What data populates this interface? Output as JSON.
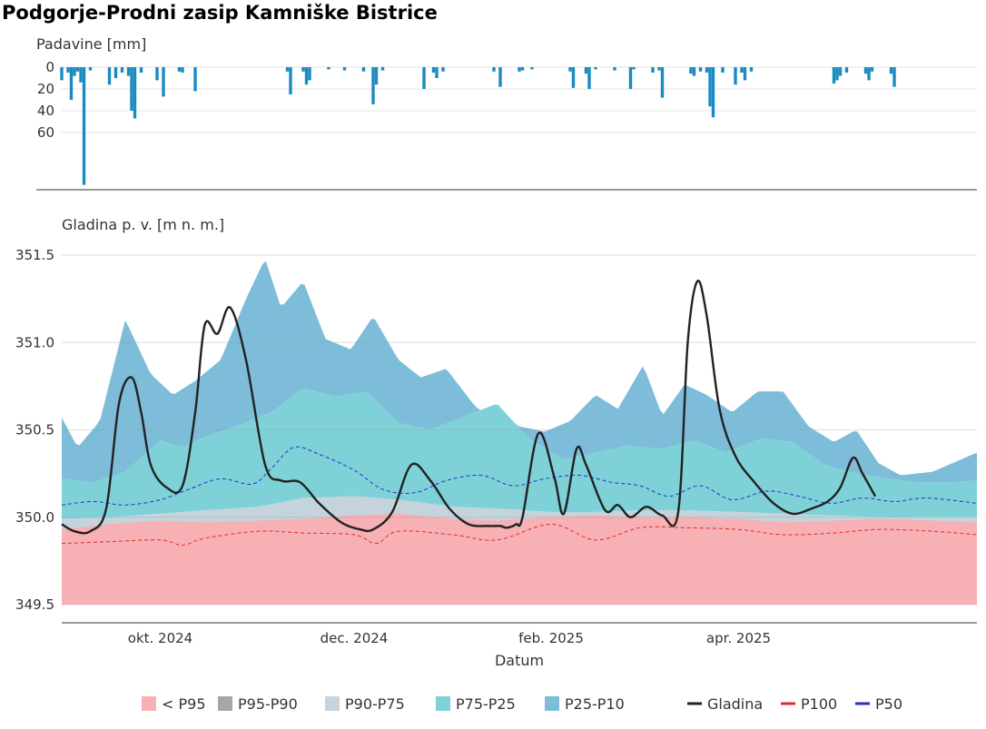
{
  "chart_data": {
    "title": "Podgorje-Prodni zasip Kamniške Bistrice",
    "panels": [
      {
        "type": "bar",
        "ylabel": "Padavine [mm]",
        "ylim": [
          0,
          110
        ],
        "yticks": [
          0,
          20,
          40,
          60
        ],
        "reversed": true,
        "color": "#1a8ac0",
        "x": [
          "2024-08-31",
          "2024-09-02",
          "2024-09-03",
          "2024-09-04",
          "2024-09-05",
          "2024-09-06",
          "2024-09-07",
          "2024-09-09",
          "2024-09-15",
          "2024-09-17",
          "2024-09-19",
          "2024-09-21",
          "2024-09-22",
          "2024-09-23",
          "2024-09-25",
          "2024-09-30",
          "2024-10-02",
          "2024-10-07",
          "2024-10-08",
          "2024-10-12",
          "2024-11-10",
          "2024-11-11",
          "2024-11-15",
          "2024-11-16",
          "2024-11-17",
          "2024-11-23",
          "2024-11-28",
          "2024-12-04",
          "2024-12-07",
          "2024-12-08",
          "2024-12-10",
          "2024-12-23",
          "2024-12-26",
          "2024-12-27",
          "2024-12-29",
          "2025-01-14",
          "2025-01-16",
          "2025-01-22",
          "2025-01-23",
          "2025-01-26",
          "2025-02-07",
          "2025-02-08",
          "2025-02-12",
          "2025-02-13",
          "2025-02-15",
          "2025-02-21",
          "2025-02-26",
          "2025-02-27",
          "2025-03-05",
          "2025-03-07",
          "2025-03-08",
          "2025-03-17",
          "2025-03-18",
          "2025-03-20",
          "2025-03-22",
          "2025-03-23",
          "2025-03-24",
          "2025-03-27",
          "2025-03-31",
          "2025-04-02",
          "2025-04-03",
          "2025-04-05",
          "2025-05-01",
          "2025-05-02",
          "2025-05-03",
          "2025-05-05",
          "2025-05-11",
          "2025-05-12",
          "2025-05-13",
          "2025-05-19",
          "2025-05-20"
        ],
        "values": [
          12,
          5,
          30,
          8,
          4,
          14,
          108,
          3,
          16,
          10,
          5,
          8,
          40,
          47,
          5,
          12,
          27,
          4,
          5,
          22,
          4,
          25,
          4,
          16,
          12,
          2,
          3,
          4,
          34,
          16,
          3,
          20,
          5,
          10,
          4,
          4,
          18,
          4,
          3,
          2,
          4,
          19,
          6,
          20,
          2,
          3,
          20,
          2,
          5,
          3,
          28,
          6,
          8,
          4,
          5,
          36,
          46,
          5,
          16,
          5,
          12,
          4,
          15,
          12,
          8,
          5,
          6,
          12,
          4,
          6,
          18
        ]
      },
      {
        "type": "area",
        "ylabel": "Gladina p. v. [m n. m.]",
        "xlabel": "Datum",
        "ylim": [
          349.5,
          351.5
        ],
        "yticks": [
          349.5,
          350.0,
          350.5,
          351.0,
          351.5
        ],
        "ytick_labels": [
          "349.5",
          "350.0",
          "350.5",
          "351.0",
          "351.5"
        ],
        "xlim": [
          "2024-08-31",
          "2025-06-15"
        ],
        "xticks": [
          "2024-10-01",
          "2024-12-01",
          "2025-02-01",
          "2025-04-01"
        ],
        "xtick_labels": [
          "okt. 2024",
          "dec. 2024",
          "feb. 2025",
          "apr. 2025"
        ],
        "bands": [
          {
            "name": "< P95",
            "color": "#f7b0b3",
            "x": [
              "2024-08-31",
              "2025-06-15"
            ],
            "lower": [
              349.5,
              349.5
            ],
            "upper": null
          },
          {
            "name": "P95-P90",
            "color": "#aca4a1",
            "x": [
              "2024-08-31",
              "2024-09-15",
              "2024-10-01",
              "2024-10-15",
              "2024-11-01",
              "2024-11-15",
              "2024-12-01",
              "2024-12-15",
              "2025-01-01",
              "2025-01-15",
              "2025-02-01",
              "2025-02-15",
              "2025-03-01",
              "2025-03-15",
              "2025-04-01",
              "2025-04-15",
              "2025-05-01",
              "2025-05-15",
              "2025-06-01",
              "2025-06-15"
            ],
            "lower": [
              349.88,
              349.9,
              349.93,
              349.92,
              349.93,
              349.94,
              349.96,
              349.97,
              349.95,
              349.93,
              349.96,
              349.97,
              349.96,
              349.96,
              349.95,
              349.93,
              349.94,
              349.95,
              349.94,
              349.93
            ],
            "upper": [
              349.93,
              349.96,
              349.98,
              349.97,
              349.98,
              349.99,
              350.01,
              350.02,
              349.99,
              349.98,
              350.0,
              350.01,
              350.0,
              350.0,
              349.99,
              349.97,
              349.98,
              349.99,
              349.98,
              349.97
            ]
          },
          {
            "name": "P90-P75",
            "color": "#c5d4dc",
            "x": [
              "2024-08-31",
              "2024-09-15",
              "2024-10-01",
              "2024-10-15",
              "2024-11-01",
              "2024-11-15",
              "2024-12-01",
              "2024-12-15",
              "2025-01-01",
              "2025-01-15",
              "2025-02-01",
              "2025-02-15",
              "2025-03-01",
              "2025-03-15",
              "2025-04-01",
              "2025-04-15",
              "2025-05-01",
              "2025-05-15",
              "2025-06-01",
              "2025-06-15"
            ],
            "upper": [
              349.99,
              350.0,
              350.02,
              350.04,
              350.06,
              350.11,
              350.12,
              350.1,
              350.06,
              350.05,
              350.03,
              350.03,
              350.04,
              350.04,
              350.03,
              350.02,
              350.01,
              350.0,
              350.0,
              350.0
            ]
          },
          {
            "name": "P75-P25",
            "color": "#7fd1d8",
            "x": [
              "2024-08-31",
              "2024-09-10",
              "2024-09-20",
              "2024-10-01",
              "2024-10-08",
              "2024-10-15",
              "2024-10-25",
              "2024-11-05",
              "2024-11-15",
              "2024-11-25",
              "2024-12-05",
              "2024-12-15",
              "2024-12-25",
              "2025-01-05",
              "2025-01-15",
              "2025-01-25",
              "2025-02-05",
              "2025-02-15",
              "2025-02-25",
              "2025-03-08",
              "2025-03-18",
              "2025-03-28",
              "2025-04-08",
              "2025-04-18",
              "2025-04-28",
              "2025-05-08",
              "2025-05-18",
              "2025-05-28",
              "2025-06-07",
              "2025-06-15"
            ],
            "upper": [
              350.22,
              350.2,
              350.26,
              350.44,
              350.4,
              350.46,
              350.52,
              350.6,
              350.74,
              350.69,
              350.72,
              350.54,
              350.5,
              350.58,
              350.65,
              350.45,
              350.33,
              350.37,
              350.41,
              350.39,
              350.44,
              350.37,
              350.45,
              350.43,
              350.3,
              350.25,
              350.22,
              350.2,
              350.2,
              350.21
            ]
          },
          {
            "name": "P25-P10",
            "color": "#7dbdd9",
            "x": [
              "2024-08-31",
              "2024-09-05",
              "2024-09-12",
              "2024-09-20",
              "2024-09-28",
              "2024-10-05",
              "2024-10-12",
              "2024-10-20",
              "2024-10-28",
              "2024-11-03",
              "2024-11-08",
              "2024-11-15",
              "2024-11-22",
              "2024-11-30",
              "2024-12-07",
              "2024-12-15",
              "2024-12-22",
              "2024-12-30",
              "2025-01-07",
              "2025-01-15",
              "2025-01-22",
              "2025-01-30",
              "2025-02-07",
              "2025-02-15",
              "2025-02-22",
              "2025-03-02",
              "2025-03-08",
              "2025-03-15",
              "2025-03-22",
              "2025-03-30",
              "2025-04-07",
              "2025-04-15",
              "2025-04-23",
              "2025-05-01",
              "2025-05-08",
              "2025-05-15",
              "2025-05-22",
              "2025-06-01",
              "2025-06-15"
            ],
            "upper": [
              350.57,
              350.4,
              350.55,
              351.13,
              350.82,
              350.7,
              350.78,
              350.9,
              351.25,
              351.48,
              351.2,
              351.35,
              351.02,
              350.96,
              351.15,
              350.9,
              350.8,
              350.85,
              350.66,
              350.5,
              350.52,
              350.49,
              350.55,
              350.7,
              350.62,
              350.87,
              350.58,
              350.76,
              350.7,
              350.6,
              350.72,
              350.72,
              350.52,
              350.43,
              350.5,
              350.31,
              350.24,
              350.26,
              350.37
            ]
          }
        ],
        "series": [
          {
            "name": "Gladina",
            "color": "#222222",
            "style": "solid",
            "x": [
              "2024-08-31",
              "2024-09-04",
              "2024-09-09",
              "2024-09-14",
              "2024-09-18",
              "2024-09-22",
              "2024-09-25",
              "2024-09-28",
              "2024-10-03",
              "2024-10-08",
              "2024-10-12",
              "2024-10-15",
              "2024-10-19",
              "2024-10-23",
              "2024-10-28",
              "2024-11-03",
              "2024-11-08",
              "2024-11-14",
              "2024-11-20",
              "2024-11-27",
              "2024-12-03",
              "2024-12-07",
              "2024-12-13",
              "2024-12-19",
              "2024-12-25",
              "2024-12-31",
              "2025-01-06",
              "2025-01-12",
              "2025-01-16",
              "2025-01-18",
              "2025-01-21",
              "2025-01-23",
              "2025-01-28",
              "2025-02-02",
              "2025-02-05",
              "2025-02-09",
              "2025-02-12",
              "2025-02-18",
              "2025-02-22",
              "2025-02-26",
              "2025-03-03",
              "2025-03-08",
              "2025-03-13",
              "2025-03-16",
              "2025-03-19",
              "2025-03-22",
              "2025-03-26",
              "2025-03-31",
              "2025-04-06",
              "2025-04-12",
              "2025-04-18",
              "2025-04-24",
              "2025-04-29",
              "2025-05-03",
              "2025-05-07",
              "2025-05-10",
              "2025-05-14"
            ],
            "values": [
              349.96,
              349.92,
              349.92,
              350.05,
              350.65,
              350.8,
              350.6,
              350.3,
              350.17,
              350.18,
              350.6,
              351.1,
              351.05,
              351.2,
              350.9,
              350.3,
              350.21,
              350.2,
              350.08,
              349.97,
              349.93,
              349.93,
              350.03,
              350.3,
              350.21,
              350.05,
              349.96,
              349.95,
              349.95,
              349.94,
              349.96,
              350.0,
              350.48,
              350.23,
              350.02,
              350.39,
              350.3,
              350.04,
              350.07,
              350.0,
              350.06,
              350.01,
              350.03,
              351.0,
              351.35,
              351.15,
              350.62,
              350.35,
              350.2,
              350.08,
              350.02,
              350.05,
              350.09,
              350.17,
              350.34,
              350.25,
              350.12
            ]
          },
          {
            "name": "P100",
            "color": "#e32b2b",
            "style": "dashed",
            "x": [
              "2024-08-31",
              "2024-09-15",
              "2024-10-01",
              "2024-10-08",
              "2024-10-15",
              "2024-11-01",
              "2024-11-15",
              "2024-12-01",
              "2024-12-08",
              "2024-12-15",
              "2025-01-01",
              "2025-01-15",
              "2025-02-01",
              "2025-02-15",
              "2025-03-01",
              "2025-03-15",
              "2025-04-01",
              "2025-04-15",
              "2025-05-01",
              "2025-05-15",
              "2025-06-01",
              "2025-06-15"
            ],
            "values": [
              349.85,
              349.86,
              349.87,
              349.84,
              349.88,
              349.92,
              349.91,
              349.9,
              349.85,
              349.92,
              349.9,
              349.87,
              349.96,
              349.87,
              349.94,
              349.94,
              349.93,
              349.9,
              349.91,
              349.93,
              349.92,
              349.9
            ]
          },
          {
            "name": "P50",
            "color": "#2032c8",
            "style": "dashed",
            "x": [
              "2024-08-31",
              "2024-09-10",
              "2024-09-20",
              "2024-10-01",
              "2024-10-10",
              "2024-10-20",
              "2024-10-30",
              "2024-11-05",
              "2024-11-12",
              "2024-11-20",
              "2024-12-01",
              "2024-12-10",
              "2024-12-20",
              "2024-12-30",
              "2025-01-10",
              "2025-01-20",
              "2025-01-30",
              "2025-02-10",
              "2025-02-20",
              "2025-03-01",
              "2025-03-10",
              "2025-03-20",
              "2025-03-30",
              "2025-04-10",
              "2025-04-20",
              "2025-04-30",
              "2025-05-10",
              "2025-05-20",
              "2025-05-30",
              "2025-06-15"
            ],
            "values": [
              350.07,
              350.09,
              350.07,
              350.1,
              350.16,
              350.22,
              350.19,
              350.28,
              350.4,
              350.36,
              350.27,
              350.16,
              350.14,
              350.21,
              350.24,
              350.18,
              350.22,
              350.24,
              350.2,
              350.18,
              350.12,
              350.18,
              350.1,
              350.15,
              350.12,
              350.08,
              350.11,
              350.09,
              350.11,
              350.08
            ]
          }
        ]
      }
    ],
    "legend": {
      "position": "bottom",
      "items": [
        {
          "label": "< P95",
          "kind": "box",
          "color": "#f7b0b3"
        },
        {
          "label": "P95-P90",
          "kind": "box",
          "color": "#aca4a1"
        },
        {
          "label": "P90-P75",
          "kind": "box",
          "color": "#c5d4dc"
        },
        {
          "label": "P75-P25",
          "kind": "box",
          "color": "#7fd1d8"
        },
        {
          "label": "P25-P10",
          "kind": "box",
          "color": "#7dbdd9"
        },
        {
          "label": "Gladina",
          "kind": "line",
          "color": "#222222"
        },
        {
          "label": "P100",
          "kind": "line",
          "color": "#e32b2b"
        },
        {
          "label": "P50",
          "kind": "line",
          "color": "#2032c8"
        }
      ]
    },
    "grid": true
  }
}
